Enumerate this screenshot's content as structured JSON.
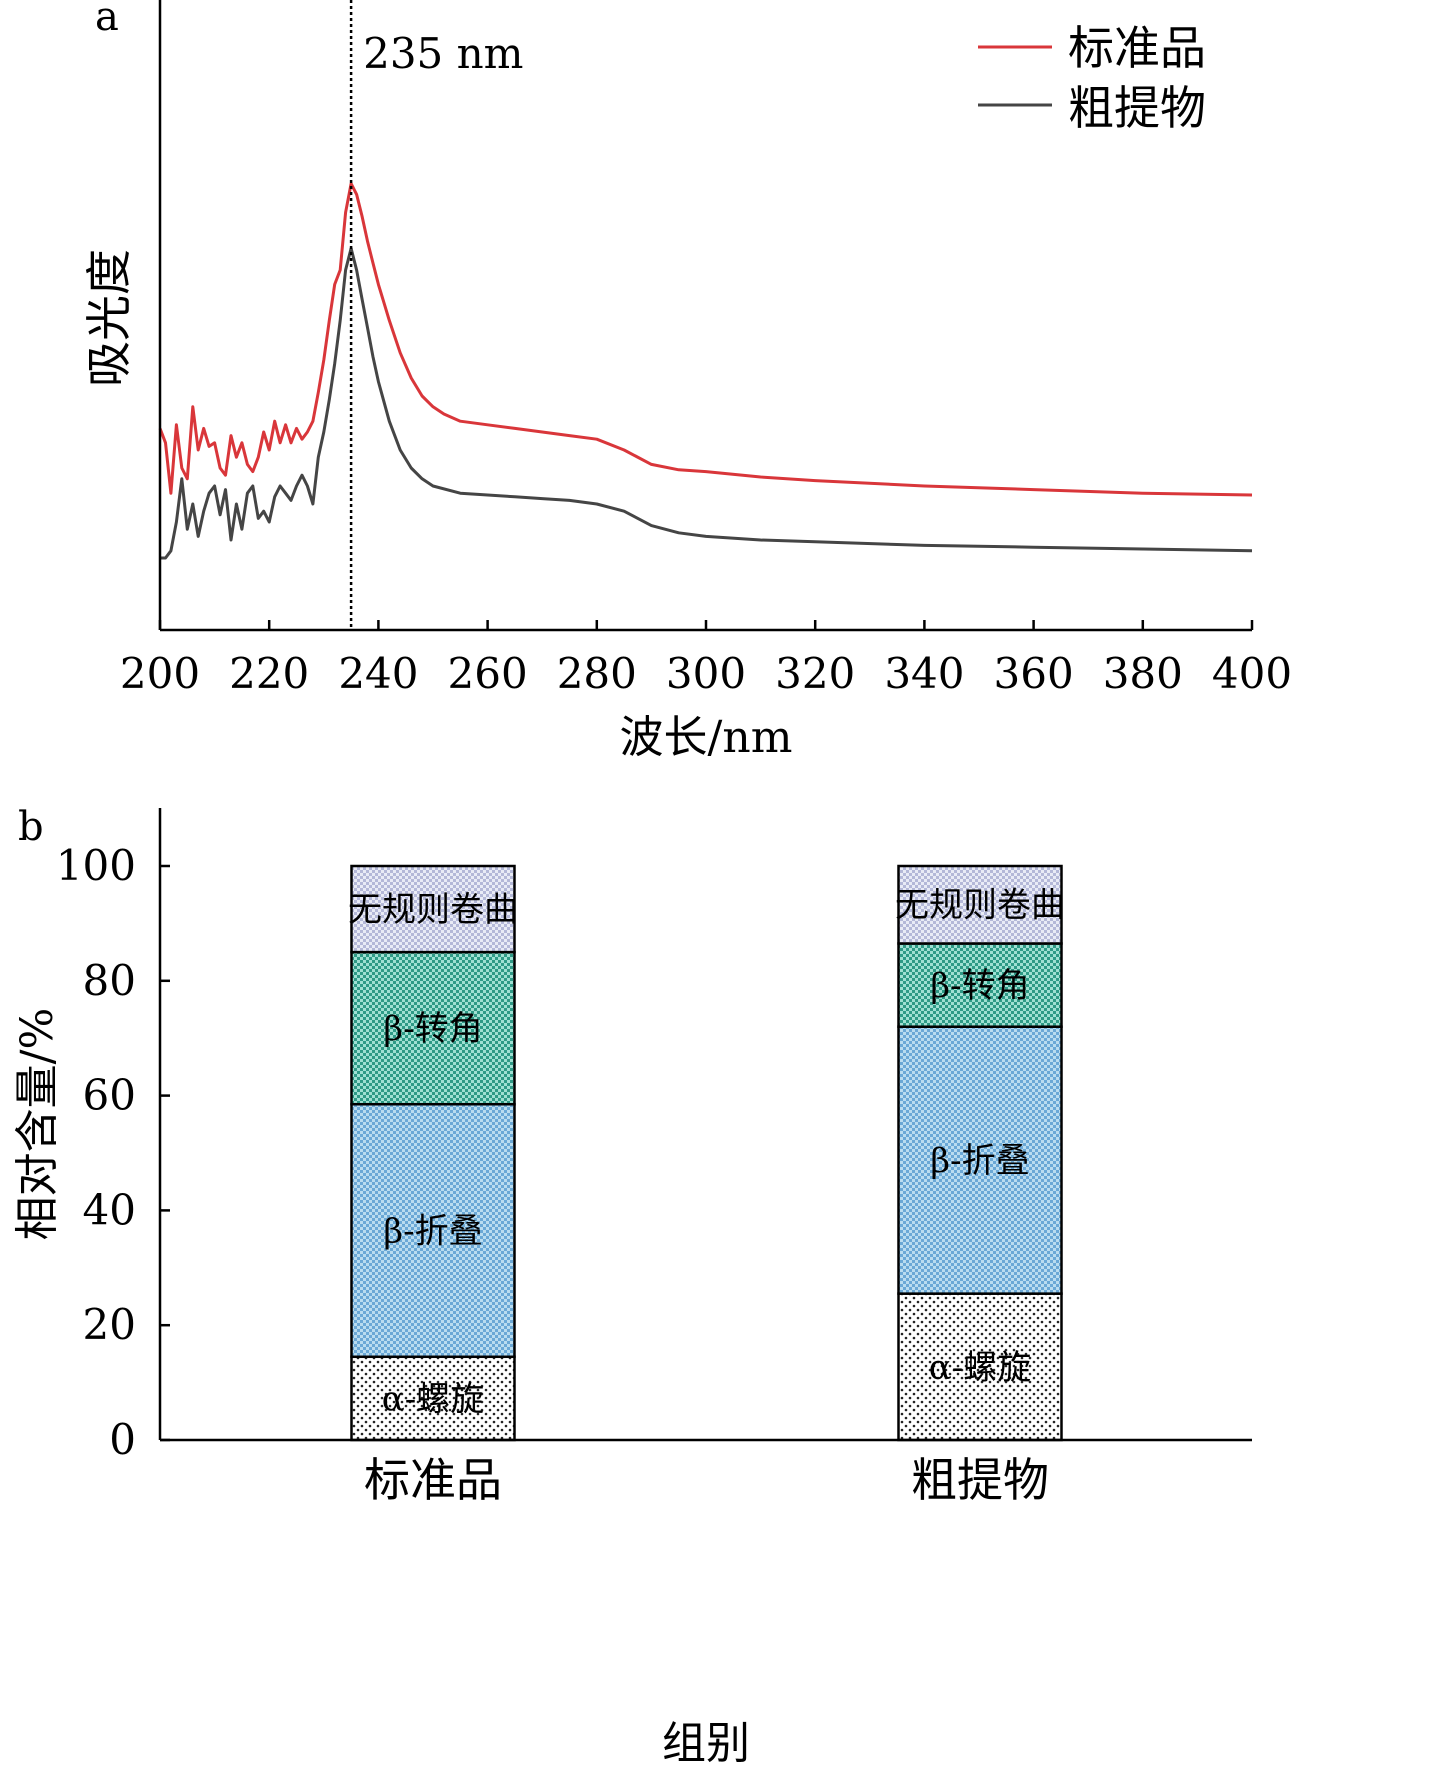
{
  "chart_data": [
    {
      "panel": "a",
      "type": "line",
      "xlabel": "波长/nm",
      "ylabel": "吸光度",
      "xlim": [
        200,
        400
      ],
      "x_ticks": [
        200,
        220,
        240,
        260,
        280,
        300,
        320,
        340,
        360,
        380,
        400
      ],
      "y_ticks_shown": false,
      "legend_position": "top-right",
      "annotation": {
        "text": "235 nm",
        "x": 235,
        "line_style": "dotted"
      },
      "series": [
        {
          "name": "标准品",
          "color": "#d9363a",
          "points": [
            [
              200,
              0.56
            ],
            [
              201,
              0.52
            ],
            [
              202,
              0.38
            ],
            [
              203,
              0.57
            ],
            [
              204,
              0.45
            ],
            [
              205,
              0.42
            ],
            [
              206,
              0.62
            ],
            [
              207,
              0.5
            ],
            [
              208,
              0.56
            ],
            [
              209,
              0.51
            ],
            [
              210,
              0.52
            ],
            [
              211,
              0.45
            ],
            [
              212,
              0.43
            ],
            [
              213,
              0.54
            ],
            [
              214,
              0.48
            ],
            [
              215,
              0.52
            ],
            [
              216,
              0.46
            ],
            [
              217,
              0.44
            ],
            [
              218,
              0.48
            ],
            [
              219,
              0.55
            ],
            [
              220,
              0.5
            ],
            [
              221,
              0.58
            ],
            [
              222,
              0.52
            ],
            [
              223,
              0.57
            ],
            [
              224,
              0.52
            ],
            [
              225,
              0.56
            ],
            [
              226,
              0.53
            ],
            [
              227,
              0.55
            ],
            [
              228,
              0.58
            ],
            [
              229,
              0.66
            ],
            [
              230,
              0.75
            ],
            [
              231,
              0.86
            ],
            [
              232,
              0.96
            ],
            [
              233,
              1.0
            ],
            [
              234,
              1.16
            ],
            [
              235,
              1.24
            ],
            [
              236,
              1.21
            ],
            [
              237,
              1.15
            ],
            [
              238,
              1.08
            ],
            [
              239,
              1.02
            ],
            [
              240,
              0.96
            ],
            [
              242,
              0.86
            ],
            [
              244,
              0.77
            ],
            [
              246,
              0.7
            ],
            [
              248,
              0.65
            ],
            [
              250,
              0.62
            ],
            [
              252,
              0.6
            ],
            [
              255,
              0.58
            ],
            [
              260,
              0.57
            ],
            [
              265,
              0.56
            ],
            [
              270,
              0.55
            ],
            [
              275,
              0.54
            ],
            [
              280,
              0.53
            ],
            [
              285,
              0.5
            ],
            [
              290,
              0.46
            ],
            [
              295,
              0.445
            ],
            [
              300,
              0.44
            ],
            [
              310,
              0.425
            ],
            [
              320,
              0.415
            ],
            [
              340,
              0.4
            ],
            [
              360,
              0.39
            ],
            [
              380,
              0.38
            ],
            [
              400,
              0.375
            ]
          ]
        },
        {
          "name": "粗提物",
          "color": "#454545",
          "points": [
            [
              200,
              0.2
            ],
            [
              201,
              0.2
            ],
            [
              202,
              0.22
            ],
            [
              203,
              0.3
            ],
            [
              204,
              0.42
            ],
            [
              205,
              0.28
            ],
            [
              206,
              0.35
            ],
            [
              207,
              0.26
            ],
            [
              208,
              0.33
            ],
            [
              209,
              0.38
            ],
            [
              210,
              0.4
            ],
            [
              211,
              0.32
            ],
            [
              212,
              0.39
            ],
            [
              213,
              0.25
            ],
            [
              214,
              0.35
            ],
            [
              215,
              0.28
            ],
            [
              216,
              0.38
            ],
            [
              217,
              0.4
            ],
            [
              218,
              0.31
            ],
            [
              219,
              0.33
            ],
            [
              220,
              0.3
            ],
            [
              221,
              0.37
            ],
            [
              222,
              0.4
            ],
            [
              223,
              0.38
            ],
            [
              224,
              0.36
            ],
            [
              225,
              0.4
            ],
            [
              226,
              0.43
            ],
            [
              227,
              0.4
            ],
            [
              228,
              0.35
            ],
            [
              229,
              0.48
            ],
            [
              230,
              0.55
            ],
            [
              231,
              0.64
            ],
            [
              232,
              0.74
            ],
            [
              233,
              0.86
            ],
            [
              234,
              1.0
            ],
            [
              235,
              1.06
            ],
            [
              236,
              1.0
            ],
            [
              237,
              0.92
            ],
            [
              238,
              0.84
            ],
            [
              239,
              0.76
            ],
            [
              240,
              0.69
            ],
            [
              242,
              0.58
            ],
            [
              244,
              0.5
            ],
            [
              246,
              0.45
            ],
            [
              248,
              0.42
            ],
            [
              250,
              0.4
            ],
            [
              255,
              0.38
            ],
            [
              260,
              0.375
            ],
            [
              265,
              0.37
            ],
            [
              270,
              0.365
            ],
            [
              275,
              0.36
            ],
            [
              280,
              0.35
            ],
            [
              285,
              0.33
            ],
            [
              290,
              0.29
            ],
            [
              295,
              0.27
            ],
            [
              300,
              0.26
            ],
            [
              310,
              0.25
            ],
            [
              320,
              0.245
            ],
            [
              340,
              0.235
            ],
            [
              360,
              0.23
            ],
            [
              380,
              0.225
            ],
            [
              400,
              0.22
            ]
          ]
        }
      ]
    },
    {
      "panel": "b",
      "type": "bar",
      "stacked": true,
      "xlabel": "组别",
      "ylabel": "相对含量/%",
      "ylim": [
        0,
        110
      ],
      "y_ticks": [
        0,
        20,
        40,
        60,
        80,
        100
      ],
      "categories": [
        "标准品",
        "粗提物"
      ],
      "series": [
        {
          "name": "α-螺旋",
          "label": "α-螺旋",
          "color": "#ffffff",
          "pattern": "dots",
          "values": [
            14.5,
            25.5
          ]
        },
        {
          "name": "β-折叠",
          "label": "β-折叠",
          "color": "#8fc3e4",
          "pattern": "checker",
          "values": [
            44,
            46.5
          ]
        },
        {
          "name": "β-转角",
          "label": "β-转角",
          "color": "#5fbfaf",
          "pattern": "checker",
          "values": [
            26.5,
            14.5
          ]
        },
        {
          "name": "无规则卷曲",
          "label": "无规则卷曲",
          "color": "#d2d5ea",
          "pattern": "checker",
          "values": [
            15,
            13.5
          ]
        }
      ]
    }
  ]
}
